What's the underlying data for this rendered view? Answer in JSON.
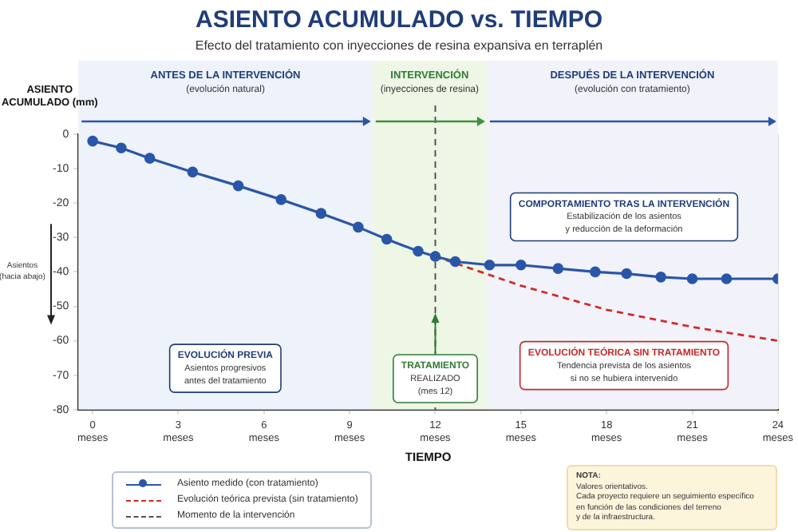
{
  "chart_data": {
    "type": "line",
    "title": "ASIENTO ACUMULADO vs. TIEMPO",
    "subtitle": "Efecto del tratamiento con inyecciones de resina expansiva en terraplén",
    "xlabel": "TIEMPO",
    "ylabel": "ASIENTO\nACUMULADO (mm)",
    "xlim": [
      -0.5,
      24
    ],
    "xticks": [
      {
        "value": 0,
        "label": "0\nmeses"
      },
      {
        "value": 3,
        "label": "3\nmeses"
      },
      {
        "value": 6,
        "label": "6\nmeses"
      },
      {
        "value": 9,
        "label": "9\nmeses"
      },
      {
        "value": 12,
        "label": "12\nmeses"
      },
      {
        "value": 15,
        "label": "15\nmeses"
      },
      {
        "value": 18,
        "label": "18\nmeses"
      },
      {
        "value": 21,
        "label": "21\nmeses"
      },
      {
        "value": 24,
        "label": "24\nmeses"
      }
    ],
    "ylim": [
      -80,
      0
    ],
    "yticks": [
      0,
      -10,
      -20,
      -30,
      -40,
      -50,
      -60,
      -70,
      -80
    ],
    "grid": true,
    "legend": "bottom left",
    "marker": "circle",
    "line_style": "solid",
    "series": [
      {
        "name": "Asiento medido (con tratamiento)",
        "color": "#2a56a8",
        "x": [
          0,
          1,
          2,
          3.5,
          5.1,
          6.6,
          8,
          9.3,
          10.3,
          11.4,
          12,
          12.7,
          13.9,
          15,
          16.3,
          17.6,
          18.7,
          19.9,
          21,
          22.2,
          24
        ],
        "values": [
          -2,
          -4,
          -7,
          -11,
          -15,
          -19,
          -23,
          -27,
          -30.5,
          -34,
          -35.5,
          -37,
          -38,
          -38,
          -39,
          -40,
          -40.5,
          -41.5,
          -42,
          -42,
          -42
        ]
      },
      {
        "name": "Evolución teórica prevista (sin tratamiento)",
        "color": "#d42a2a",
        "line_style": "dashed",
        "marker": "none",
        "x": [
          12,
          15,
          18,
          21,
          24
        ],
        "values": [
          -35.5,
          -44,
          -51,
          -56,
          -60
        ]
      }
    ],
    "bands": [
      {
        "axis": "x",
        "from": -0.5,
        "to": 9.8,
        "label": "ANTES DE LA INTERVENCIÓN\n(evolución natural)",
        "color": "#eef2fb"
      },
      {
        "axis": "x",
        "from": 9.8,
        "to": 13.8,
        "label": "INTERVENCIÓN\n(inyecciones de resina)",
        "color": "#eef6e6"
      },
      {
        "axis": "x",
        "from": 13.8,
        "to": 24,
        "label": "DESPUÉS DE LA INTERVENCIÓN\n(evolución con tratamiento)",
        "color": "#f2f2fa"
      }
    ],
    "ref_lines": [
      {
        "axis": "x",
        "value": 12,
        "label": "Momento de la intervención",
        "color": "#555555",
        "line_style": "dashed"
      }
    ],
    "annotations": [
      "Asientos\n(hacia abajo)",
      "EVOLUCIÓN PREVIA\nAsientos progresivos\nantes del tratamiento",
      {
        "text": "TRATAMIENTO\nREALIZADO\n(mes 12)",
        "x": 12,
        "y": -71
      },
      "COMPORTAMIENTO TRAS LA INTERVENCIÓN\nEstabilización de los asientos\ny reducción de la deformación",
      "EVOLUCIÓN TEÓRICA SIN TRATAMIENTO\nTendencia prevista de los asientos\nsi no se hubiera intervenido",
      "NOTA:\nValores orientativos.\nCada proyecto requiere un seguimiento específico\nen función de las condiciones del terreno\ny de la infraestructura."
    ]
  }
}
